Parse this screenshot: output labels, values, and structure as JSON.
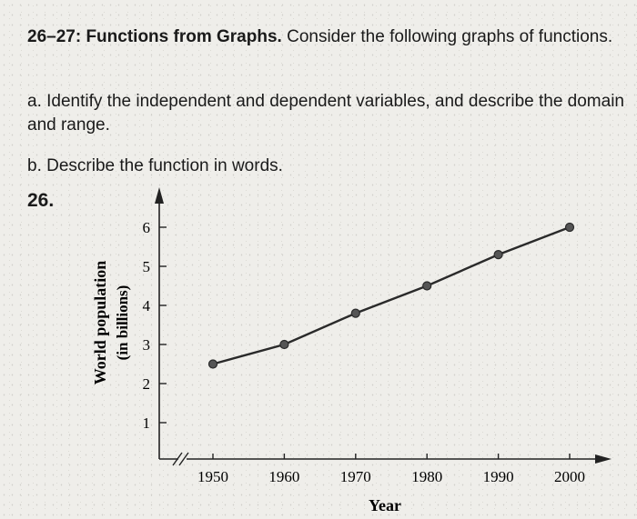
{
  "header": {
    "range_label": "26–27:",
    "title": "Functions from Graphs.",
    "instruction": " Consider the following graphs of functions."
  },
  "parts": {
    "a": "a. Identify the independent and dependent variables, and describe the domain and range.",
    "b": "b. Describe the function in words."
  },
  "problem_number": "26.",
  "chart_data": {
    "type": "line",
    "title": "",
    "xlabel": "Year",
    "ylabel_line1": "World population",
    "ylabel_line2": "(in billions)",
    "x": [
      1950,
      1960,
      1970,
      1980,
      1990,
      2000
    ],
    "y": [
      2.5,
      3.0,
      3.8,
      4.5,
      5.3,
      6.0
    ],
    "x_ticks": [
      "1950",
      "1960",
      "1970",
      "1980",
      "1990",
      "2000"
    ],
    "y_ticks": [
      "1",
      "2",
      "3",
      "4",
      "5",
      "6"
    ],
    "xlim": [
      1940,
      2005
    ],
    "ylim": [
      0,
      6.5
    ],
    "grid": false,
    "axis_break": true,
    "line_color": "#2a2a2a"
  }
}
